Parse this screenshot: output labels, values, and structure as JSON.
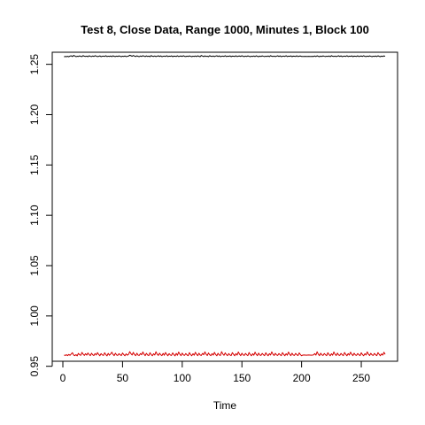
{
  "chart_data": {
    "type": "line",
    "title": "Test 8, Close Data, Range 1000, Minutes 1, Block 100",
    "xlabel": "Time",
    "ylabel": "",
    "xlim": [
      0,
      270
    ],
    "ylim": [
      0.955,
      1.262
    ],
    "x_ticks": [
      0,
      50,
      100,
      150,
      200,
      250
    ],
    "y_ticks": [
      0.95,
      1.0,
      1.05,
      1.1,
      1.15,
      1.2,
      1.25
    ],
    "y_tick_labels": [
      "0.95",
      "1.00",
      "1.05",
      "1.10",
      "1.15",
      "1.20",
      "1.25"
    ],
    "grid": false,
    "series": [
      {
        "color": "#000000",
        "x_start": 1,
        "x_end": 270,
        "values": [
          1.2575,
          1.2578,
          1.2576,
          1.258,
          1.2575,
          1.2582,
          1.2585,
          1.2577,
          1.2588,
          1.2583,
          1.2576,
          1.258,
          1.2578,
          1.2584,
          1.2579,
          1.2577,
          1.2587,
          1.258,
          1.2578,
          1.2582,
          1.2576,
          1.2585,
          1.258,
          1.2577,
          1.2583,
          1.2578,
          1.2586,
          1.2581,
          1.2577,
          1.2579,
          1.2584,
          1.2576,
          1.258,
          1.2582,
          1.2578,
          1.2586,
          1.2577,
          1.2581,
          1.2578,
          1.2583,
          1.2576,
          1.2585,
          1.2579,
          1.2577,
          1.2582,
          1.2578,
          1.2584,
          1.258,
          1.2576,
          1.2581,
          1.2578,
          1.2583,
          1.2577,
          1.2579,
          1.2582,
          1.259,
          1.2586,
          1.258,
          1.2588,
          1.2582,
          1.2577,
          1.2585,
          1.2579,
          1.2576,
          1.2583,
          1.2578,
          1.2586,
          1.2581,
          1.2577,
          1.2584,
          1.2578,
          1.2582,
          1.2576,
          1.2587,
          1.258,
          1.2578,
          1.2583,
          1.2577,
          1.2581,
          1.2585,
          1.2578,
          1.2584,
          1.2576,
          1.258,
          1.2582,
          1.2578,
          1.2586,
          1.2577,
          1.2581,
          1.2579,
          1.2584,
          1.2576,
          1.2582,
          1.258,
          1.2578,
          1.2585,
          1.2577,
          1.2581,
          1.2583,
          1.2578,
          1.2586,
          1.2579,
          1.2577,
          1.2582,
          1.2578,
          1.2584,
          1.258,
          1.2576,
          1.2581,
          1.2578,
          1.2583,
          1.2577,
          1.2585,
          1.2579,
          1.2576,
          1.2588,
          1.2582,
          1.2577,
          1.2584,
          1.2578,
          1.2581,
          1.2576,
          1.2586,
          1.258,
          1.2578,
          1.2583,
          1.2577,
          1.2582,
          1.2585,
          1.2578,
          1.2584,
          1.2576,
          1.258,
          1.2582,
          1.2578,
          1.2586,
          1.2577,
          1.2581,
          1.2579,
          1.2584,
          1.2576,
          1.2582,
          1.258,
          1.2578,
          1.2585,
          1.2577,
          1.2581,
          1.2583,
          1.2578,
          1.2586,
          1.2579,
          1.2577,
          1.2582,
          1.2578,
          1.2584,
          1.258,
          1.2576,
          1.2581,
          1.2578,
          1.2583,
          1.2577,
          1.2585,
          1.2579,
          1.2576,
          1.2582,
          1.2578,
          1.2584,
          1.258,
          1.2577,
          1.2581,
          1.2578,
          1.2583,
          1.2576,
          1.2586,
          1.258,
          1.2578,
          1.2582,
          1.2577,
          1.2581,
          1.2585,
          1.2578,
          1.2584,
          1.2576,
          1.258,
          1.2582,
          1.2578,
          1.2586,
          1.2577,
          1.2581,
          1.2579,
          1.2584,
          1.2576,
          1.2582,
          1.258,
          1.2578,
          1.2585,
          1.2577,
          1.2581,
          1.2583,
          1.2578,
          1.2578,
          1.2578,
          1.2579,
          1.2578,
          1.2578,
          1.2579,
          1.2578,
          1.2578,
          1.2579,
          1.2578,
          1.2583,
          1.2577,
          1.2585,
          1.2579,
          1.2576,
          1.2582,
          1.2578,
          1.2584,
          1.258,
          1.2577,
          1.2581,
          1.2578,
          1.2583,
          1.2576,
          1.2586,
          1.258,
          1.2578,
          1.2582,
          1.2577,
          1.2581,
          1.2585,
          1.2578,
          1.2584,
          1.2576,
          1.258,
          1.2582,
          1.2578,
          1.2586,
          1.2577,
          1.2581,
          1.2579,
          1.2584,
          1.2576,
          1.2582,
          1.258,
          1.2578,
          1.2585,
          1.2577,
          1.2581,
          1.2583,
          1.2578,
          1.2586,
          1.2579,
          1.2577,
          1.2582,
          1.2578,
          1.2584,
          1.258,
          1.2576,
          1.2581,
          1.2578,
          1.2583,
          1.2577,
          1.2585,
          1.2579,
          1.2576,
          1.2582,
          1.2578,
          1.2584,
          1.258
        ]
      },
      {
        "color": "#d40000",
        "x_start": 1,
        "x_end": 270,
        "values": [
          0.9612,
          0.9608,
          0.9615,
          0.9606,
          0.9618,
          0.9609,
          0.9622,
          0.9635,
          0.9612,
          0.9606,
          0.9616,
          0.9604,
          0.9628,
          0.9614,
          0.9609,
          0.9638,
          0.962,
          0.9608,
          0.9625,
          0.9611,
          0.9632,
          0.9616,
          0.9606,
          0.963,
          0.9614,
          0.9607,
          0.9627,
          0.9612,
          0.9636,
          0.9618,
          0.9605,
          0.9626,
          0.9613,
          0.9608,
          0.9634,
          0.9616,
          0.9604,
          0.9628,
          0.961,
          0.9622,
          0.964,
          0.9618,
          0.9606,
          0.963,
          0.9612,
          0.9608,
          0.9626,
          0.9614,
          0.9607,
          0.9632,
          0.9616,
          0.9605,
          0.9624,
          0.961,
          0.9618,
          0.9645,
          0.9626,
          0.9612,
          0.9638,
          0.9616,
          0.9606,
          0.963,
          0.9611,
          0.9608,
          0.9627,
          0.9614,
          0.9642,
          0.962,
          0.9606,
          0.9629,
          0.9612,
          0.9607,
          0.9635,
          0.9616,
          0.9605,
          0.9625,
          0.9612,
          0.9644,
          0.962,
          0.9608,
          0.963,
          0.9614,
          0.9606,
          0.9628,
          0.961,
          0.9637,
          0.9618,
          0.9605,
          0.9626,
          0.9612,
          0.9608,
          0.9633,
          0.9616,
          0.9604,
          0.9628,
          0.961,
          0.9641,
          0.962,
          0.9606,
          0.9631,
          0.9613,
          0.9609,
          0.9627,
          0.9612,
          0.9606,
          0.9636,
          0.9616,
          0.9605,
          0.9625,
          0.961,
          0.9639,
          0.9618,
          0.9606,
          0.963,
          0.9612,
          0.9608,
          0.9628,
          0.9614,
          0.9643,
          0.962,
          0.9607,
          0.9632,
          0.9614,
          0.9606,
          0.9626,
          0.9611,
          0.9638,
          0.9617,
          0.9605,
          0.9629,
          0.9612,
          0.9608,
          0.9645,
          0.9622,
          0.9609,
          0.9633,
          0.9615,
          0.9606,
          0.9627,
          0.9612,
          0.9607,
          0.9636,
          0.9618,
          0.9605,
          0.9626,
          0.9611,
          0.9642,
          0.962,
          0.9606,
          0.963,
          0.9613,
          0.9608,
          0.9628,
          0.9614,
          0.9606,
          0.9637,
          0.9616,
          0.9605,
          0.9625,
          0.961,
          0.964,
          0.9618,
          0.9606,
          0.9631,
          0.9612,
          0.9608,
          0.9628,
          0.9614,
          0.9606,
          0.9634,
          0.9616,
          0.9605,
          0.9626,
          0.9612,
          0.9643,
          0.962,
          0.9607,
          0.9629,
          0.9613,
          0.9608,
          0.9627,
          0.9614,
          0.9606,
          0.9636,
          0.9618,
          0.9605,
          0.9625,
          0.961,
          0.9641,
          0.962,
          0.9606,
          0.963,
          0.9612,
          0.9608,
          0.9628,
          0.9614,
          0.9607,
          0.9633,
          0.9616,
          0.9605,
          0.9612,
          0.9613,
          0.9612,
          0.9611,
          0.9612,
          0.9613,
          0.9612,
          0.9611,
          0.9612,
          0.9613,
          0.9626,
          0.9611,
          0.9644,
          0.962,
          0.9606,
          0.963,
          0.9613,
          0.9608,
          0.9627,
          0.9614,
          0.9606,
          0.9635,
          0.9616,
          0.9605,
          0.9625,
          0.961,
          0.9642,
          0.962,
          0.9607,
          0.9631,
          0.9612,
          0.9608,
          0.9628,
          0.9614,
          0.9606,
          0.9637,
          0.9618,
          0.9605,
          0.9626,
          0.9611,
          0.964,
          0.962,
          0.9606,
          0.963,
          0.9613,
          0.9608,
          0.9627,
          0.9614,
          0.9606,
          0.9634,
          0.9616,
          0.9605,
          0.9625,
          0.9612,
          0.9643,
          0.962,
          0.9607,
          0.9629,
          0.9613,
          0.9608,
          0.9628,
          0.9614,
          0.9606,
          0.9636,
          0.9618,
          0.9605,
          0.9624,
          0.9611,
          0.9639,
          0.9618
        ]
      }
    ]
  }
}
